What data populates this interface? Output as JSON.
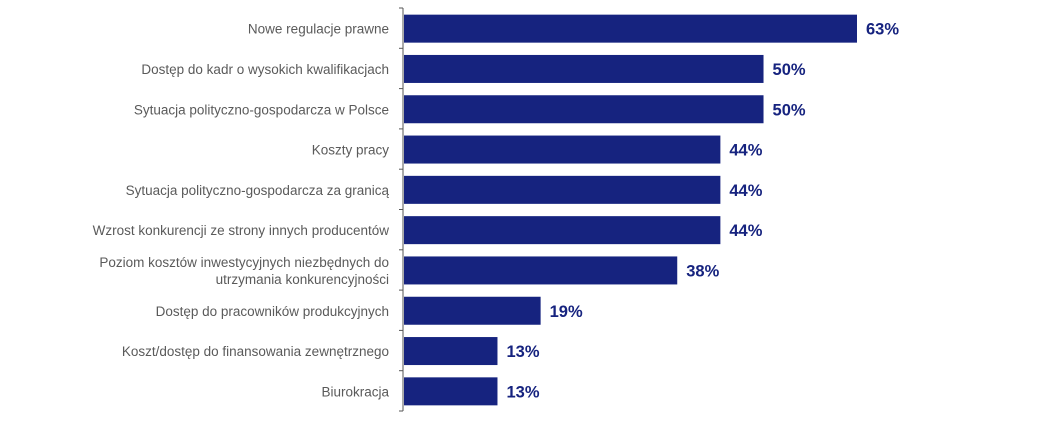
{
  "colors": {
    "bar": "#16237f",
    "value_label": "#16237f",
    "category_label": "#5a5a5a",
    "axis": "#555555"
  },
  "chart_data": {
    "type": "bar",
    "orientation": "horizontal",
    "categories": [
      [
        "Nowe regulacje prawne"
      ],
      [
        "Dostęp do kadr o wysokich kwalifikacjach"
      ],
      [
        "Sytuacja polityczno-gospodarcza w Polsce"
      ],
      [
        "Koszty pracy"
      ],
      [
        "Sytuacja polityczno-gospodarcza za granicą"
      ],
      [
        "Wzrost konkurencji ze strony innych producentów"
      ],
      [
        "Poziom kosztów inwestycyjnych niezbędnych do",
        "utrzymania konkurencyjności"
      ],
      [
        "Dostęp do pracowników produkcyjnych"
      ],
      [
        "Koszt/dostęp do finansowania zewnętrznego"
      ],
      [
        "Biurokracja"
      ]
    ],
    "values": [
      63,
      50,
      50,
      44,
      44,
      44,
      38,
      19,
      13,
      13
    ],
    "value_suffix": "%",
    "xlim": [
      0,
      63
    ],
    "grid": false,
    "legend": "none",
    "title": "",
    "xlabel": "",
    "ylabel": ""
  }
}
